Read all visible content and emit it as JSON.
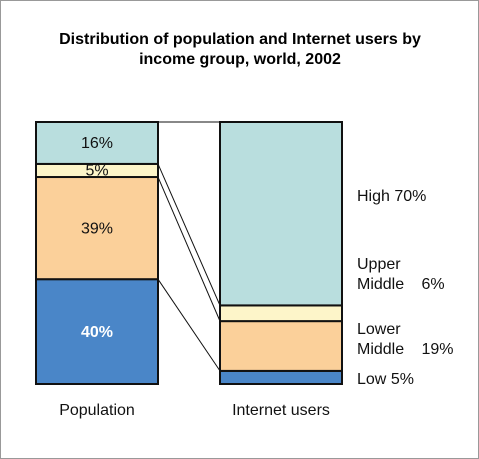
{
  "chart_data": {
    "type": "stacked_bar",
    "title": "Distribution of population and Internet users by income group, world, 2002",
    "categories": [
      "Population",
      "Internet users"
    ],
    "series": [
      {
        "name": "Low",
        "color": "#4a86c8",
        "values": [
          40,
          5
        ],
        "value_labels": [
          "40%",
          "5%"
        ]
      },
      {
        "name": "Lower Middle",
        "color": "#fbd09a",
        "values": [
          39,
          19
        ],
        "value_labels": [
          "39%",
          "19%"
        ]
      },
      {
        "name": "Upper Middle",
        "color": "#fdf5c9",
        "values": [
          5,
          6
        ],
        "value_labels": [
          "5%",
          "6%"
        ]
      },
      {
        "name": "High",
        "color": "#b9dede",
        "values": [
          16,
          70
        ],
        "value_labels": [
          "16%",
          "70%"
        ]
      }
    ],
    "ylim": [
      0,
      100
    ]
  }
}
